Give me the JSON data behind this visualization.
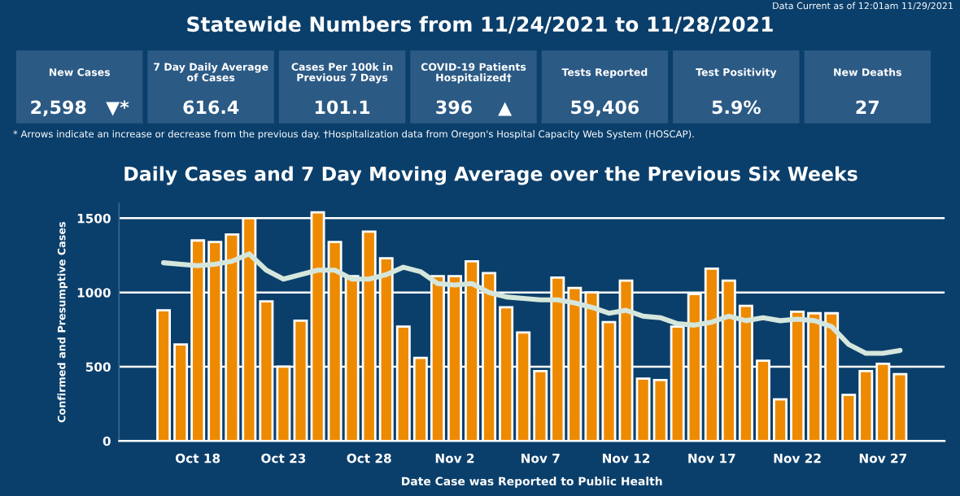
{
  "chart_data": [
    {
      "type": "other",
      "title": "Statewide Numbers from 11/24/2021 to 11/28/2021",
      "categories": [
        "New Cases",
        "7 Day Daily Average of Cases",
        "Cases Per 100k in Previous 7 Days",
        "COVID-19 Patients Hospitalized†",
        "Tests Reported",
        "Test Positivity",
        "New Deaths"
      ],
      "value_labels": [
        "2,598   ▼*",
        "616.4",
        "101.1",
        "396    ▲",
        "59,406",
        "5.9%",
        "27"
      ],
      "annotations": [
        "Data Current as of 12:01am 11/29/2021",
        "* Arrows indicate an increase or decrease from the previous day. †Hospitalization data from Oregon's Hospital Capacity Web System (HOSCAP)."
      ]
    },
    {
      "type": "bar",
      "title": "Daily Cases and 7 Day Moving Average over the Previous Six Weeks",
      "xlabel": "Date Case was Reported to Public Health",
      "ylabel": "Confirmed and Presumptive Cases",
      "categories": [
        null,
        null,
        "Oct 18",
        null,
        null,
        null,
        null,
        "Oct 23",
        null,
        null,
        null,
        null,
        "Oct 28",
        null,
        null,
        null,
        null,
        "Nov 2",
        null,
        null,
        null,
        null,
        "Nov 7",
        null,
        null,
        null,
        null,
        "Nov 12",
        null,
        null,
        null,
        null,
        "Nov 17",
        null,
        null,
        null,
        null,
        "Nov 22",
        null,
        null,
        null,
        null,
        "Nov 27",
        null
      ],
      "series": [
        {
          "type": "bar",
          "color": "#ee8a00",
          "values": [
            880,
            650,
            1350,
            1340,
            1390,
            1500,
            940,
            500,
            810,
            1540,
            1340,
            1110,
            1410,
            1230,
            770,
            560,
            1110,
            1110,
            1210,
            1130,
            900,
            730,
            470,
            1100,
            1030,
            1000,
            800,
            1080,
            420,
            410,
            770,
            990,
            1160,
            1080,
            910,
            540,
            280,
            870,
            860,
            860,
            310,
            470,
            520,
            450
          ]
        },
        {
          "type": "line",
          "color": "#d5e6dc",
          "values": [
            1200,
            1190,
            1180,
            1190,
            1210,
            1260,
            1150,
            1090,
            1120,
            1150,
            1150,
            1090,
            1090,
            1120,
            1170,
            1140,
            1060,
            1050,
            1060,
            1000,
            970,
            960,
            950,
            950,
            930,
            900,
            860,
            880,
            840,
            830,
            790,
            780,
            800,
            840,
            810,
            830,
            810,
            820,
            810,
            770,
            650,
            590,
            590,
            610
          ]
        }
      ],
      "ylim": [
        0,
        1600
      ],
      "yticks": [
        0,
        500,
        1000,
        1500
      ],
      "grid": "y"
    }
  ]
}
